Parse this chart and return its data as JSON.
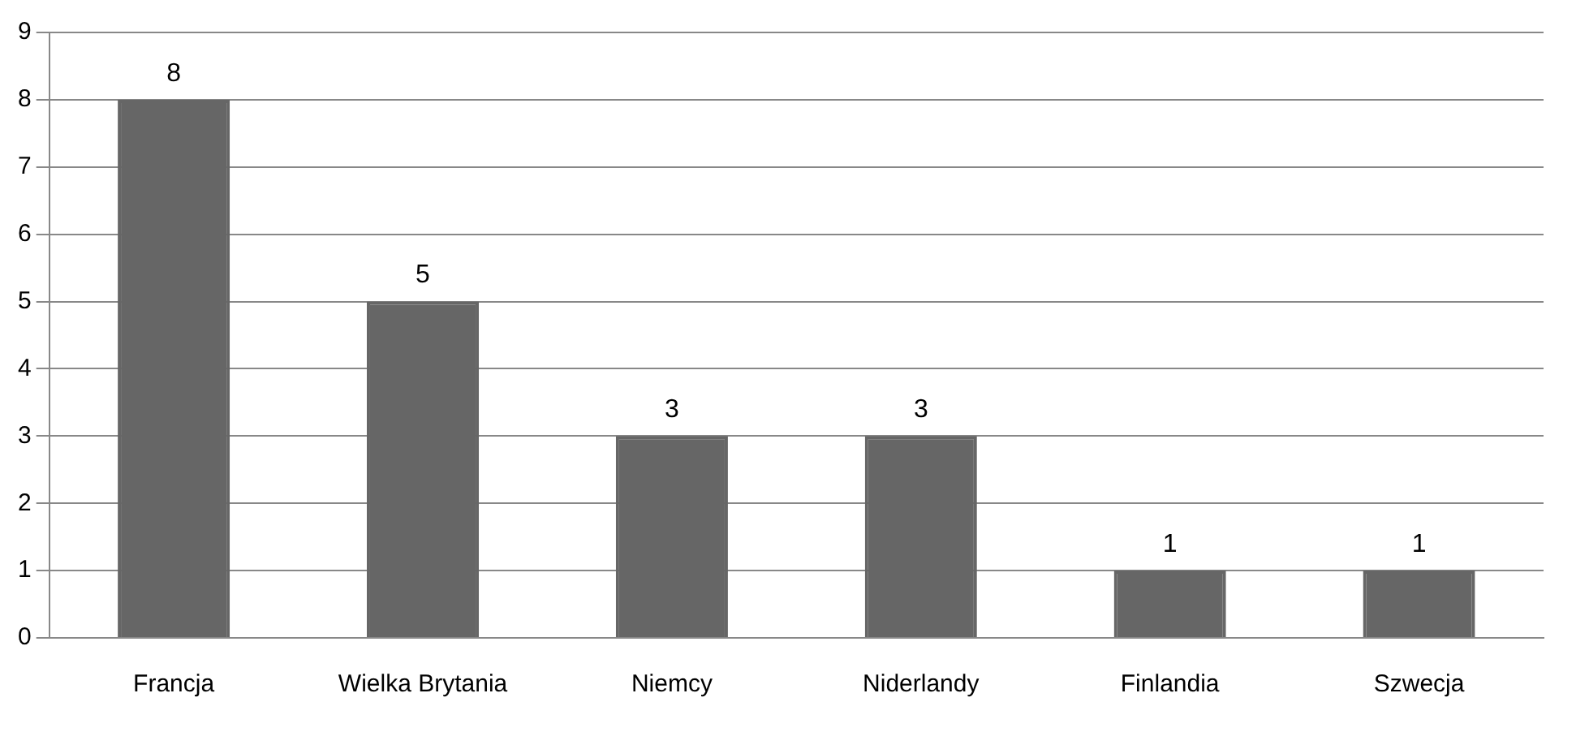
{
  "chart_data": {
    "type": "bar",
    "categories": [
      "Francja",
      "Wielka Brytania",
      "Niemcy",
      "Niderlandy",
      "Finlandia",
      "Szwecja"
    ],
    "values": [
      8,
      5,
      3,
      3,
      1,
      1
    ],
    "color": "#666666",
    "ylim": [
      0,
      9
    ],
    "yticks": [
      0,
      1,
      2,
      3,
      4,
      5,
      6,
      7,
      8,
      9
    ],
    "grid": "y",
    "legend": false,
    "data_labels": true
  }
}
